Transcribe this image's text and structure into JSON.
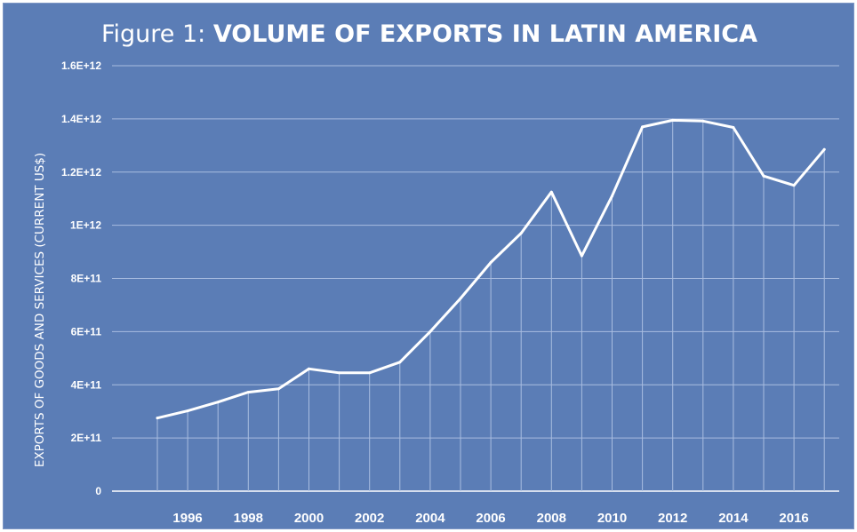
{
  "figure": {
    "title_prefix": "Figure 1: ",
    "title_bold": "VOLUME OF EXPORTS IN LATIN AMERICA",
    "background_color": "#5b7db6",
    "line_color": "#ffffff",
    "gridline_color": "#a9bde0"
  },
  "chart_data": {
    "type": "line",
    "title": "Figure 1: VOLUME OF EXPORTS IN LATIN AMERICA",
    "xlabel": "",
    "ylabel": "EXPORTS OF GOODS AND SERVICES (CURRENT US$)",
    "ylim": [
      0,
      1600000000000
    ],
    "y_ticks": [
      0,
      200000000000,
      400000000000,
      600000000000,
      800000000000,
      1000000000000,
      1200000000000,
      1400000000000,
      1600000000000
    ],
    "y_tick_labels": [
      "0",
      "2E+11",
      "4E+11",
      "6E+11",
      "8E+11",
      "1E+12",
      "1.2E+12",
      "1.4E+12",
      "1.6E+12"
    ],
    "x_tick_labels": [
      "1996",
      "1998",
      "2000",
      "2002",
      "2004",
      "2006",
      "2008",
      "2010",
      "2012",
      "2014",
      "2016"
    ],
    "grid": true,
    "legend": "none",
    "series": [
      {
        "x": [
          1995,
          1996,
          1997,
          1998,
          1999,
          2000,
          2001,
          2002,
          2003,
          2004,
          2005,
          2006,
          2007,
          2008,
          2009,
          2010,
          2011,
          2012,
          2013,
          2014,
          2015,
          2016,
          2017
        ],
        "values": [
          275000000000,
          302000000000,
          335000000000,
          372000000000,
          385000000000,
          460000000000,
          445000000000,
          445000000000,
          485000000000,
          600000000000,
          725000000000,
          860000000000,
          970000000000,
          1125000000000,
          885000000000,
          1110000000000,
          1370000000000,
          1395000000000,
          1392000000000,
          1368000000000,
          1185000000000,
          1150000000000,
          1285000000000
        ]
      }
    ]
  }
}
